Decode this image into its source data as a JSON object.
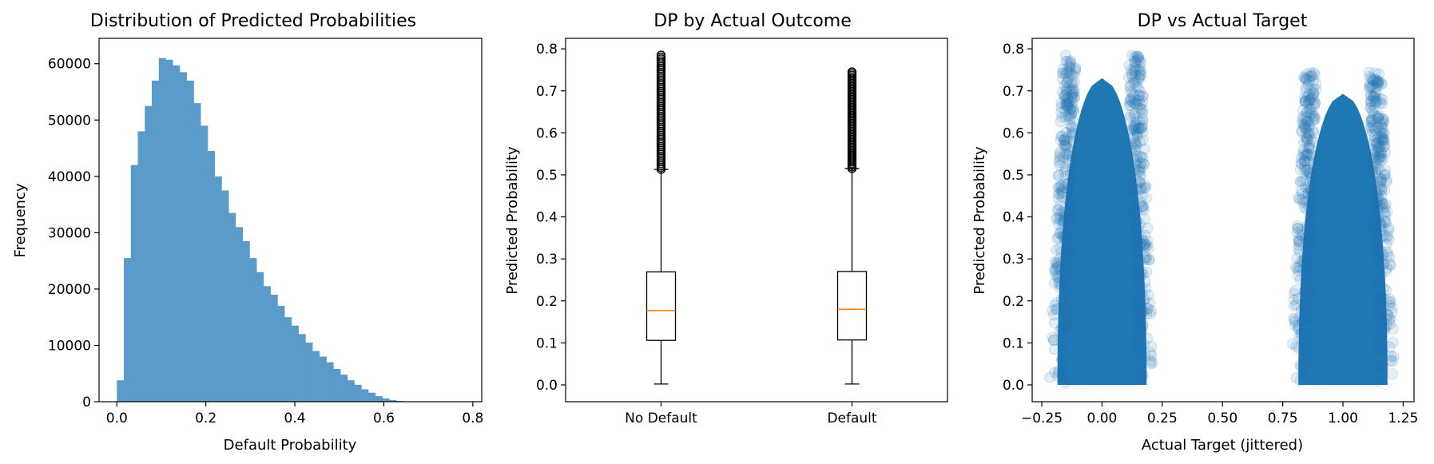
{
  "chart_data": [
    {
      "type": "bar",
      "title": "Distribution of Predicted Probabilities",
      "xlabel": "Default Probability",
      "ylabel": "Frequency",
      "xlim": [
        -0.04,
        0.82
      ],
      "ylim": [
        0,
        64500
      ],
      "xticks": [
        "0.0",
        "0.2",
        "0.4",
        "0.6",
        "0.8"
      ],
      "xtick_values": [
        0,
        0.2,
        0.4,
        0.6,
        0.8
      ],
      "yticks": [
        "0",
        "10000",
        "20000",
        "30000",
        "40000",
        "50000",
        "60000"
      ],
      "ytick_values": [
        0,
        10000,
        20000,
        30000,
        40000,
        50000,
        60000
      ],
      "color": "#5b9bc9",
      "bin_width": 0.0157,
      "bin_start": 0.0,
      "values": [
        3800,
        25500,
        42000,
        48000,
        52500,
        57000,
        61000,
        60700,
        59700,
        58500,
        57000,
        53000,
        49000,
        44500,
        40000,
        37500,
        33500,
        31000,
        28500,
        25500,
        23000,
        20500,
        19000,
        17000,
        15000,
        13500,
        12000,
        10500,
        9000,
        8000,
        7000,
        5800,
        4800,
        3800,
        3000,
        2200,
        1600,
        1000,
        600,
        300,
        130,
        60,
        20,
        5
      ]
    },
    {
      "type": "box",
      "title": "DP by Actual Outcome",
      "ylabel": "Predicted Probability",
      "categories": [
        "No Default",
        "Default"
      ],
      "ylim": [
        -0.04,
        0.825
      ],
      "yticks": [
        "0.0",
        "0.1",
        "0.2",
        "0.3",
        "0.4",
        "0.5",
        "0.6",
        "0.7",
        "0.8"
      ],
      "ytick_values": [
        0,
        0.1,
        0.2,
        0.3,
        0.4,
        0.5,
        0.6,
        0.7,
        0.8
      ],
      "median_color": "#ff7f0e",
      "boxes": [
        {
          "label": "No Default",
          "whisker_low": 0.002,
          "q1": 0.106,
          "median": 0.177,
          "q3": 0.269,
          "whisker_high": 0.513,
          "outliers_min": 0.513,
          "outliers_max": 0.785
        },
        {
          "label": "Default",
          "whisker_low": 0.002,
          "q1": 0.107,
          "median": 0.18,
          "q3": 0.27,
          "whisker_high": 0.515,
          "outliers_min": 0.515,
          "outliers_max": 0.745
        }
      ]
    },
    {
      "type": "scatter",
      "title": "DP vs Actual Target",
      "xlabel": "Actual Target (jittered)",
      "ylabel": "Predicted Probability",
      "xlim": [
        -0.29,
        1.295
      ],
      "ylim": [
        -0.04,
        0.825
      ],
      "xticks": [
        "−0.25",
        "0.00",
        "0.25",
        "0.50",
        "0.75",
        "1.00",
        "1.25"
      ],
      "xtick_values": [
        -0.25,
        0,
        0.25,
        0.5,
        0.75,
        1.0,
        1.25
      ],
      "yticks": [
        "0.0",
        "0.1",
        "0.2",
        "0.3",
        "0.4",
        "0.5",
        "0.6",
        "0.7",
        "0.8"
      ],
      "ytick_values": [
        0,
        0.1,
        0.2,
        0.3,
        0.4,
        0.5,
        0.6,
        0.7,
        0.8
      ],
      "color": "#1f77b4",
      "clusters": [
        {
          "target": 0,
          "x_jitter": 0.22,
          "y_max": 0.785
        },
        {
          "target": 1,
          "x_jitter": 0.22,
          "y_max": 0.745
        }
      ]
    }
  ]
}
